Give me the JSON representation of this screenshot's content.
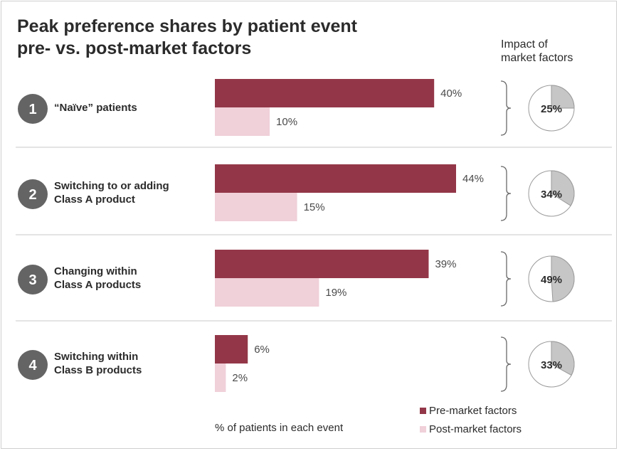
{
  "title": "Peak preference shares by patient event\npre- vs. post-market factors",
  "impact_header": "Impact of\nmarket factors",
  "colors": {
    "pre": "#933748",
    "post": "#f0d0d9",
    "badge": "#646464",
    "pie_fill": "#c6c6c6",
    "divider": "#c9c9c9"
  },
  "chart_data": {
    "type": "bar",
    "orientation": "horizontal",
    "categories": [
      "“Naïve” patients",
      "Switching to or adding Class A product",
      "Changing within Class A products",
      "Switching within Class B products"
    ],
    "category_numbers": [
      "1",
      "2",
      "3",
      "4"
    ],
    "category_lines": [
      [
        "“Naïve” patients"
      ],
      [
        "Switching to or adding",
        "Class A product"
      ],
      [
        "Changing within",
        "Class A products"
      ],
      [
        "Switching within",
        "Class B products"
      ]
    ],
    "series": [
      {
        "name": "Pre-market factors",
        "values": [
          40,
          44,
          39,
          6
        ],
        "labels": [
          "40%",
          "44%",
          "39%",
          "6%"
        ]
      },
      {
        "name": "Post-market factors",
        "values": [
          10,
          15,
          19,
          2
        ],
        "labels": [
          "10%",
          "15%",
          "19%",
          "2%"
        ]
      }
    ],
    "impact": {
      "values": [
        25,
        34,
        49,
        33
      ],
      "labels": [
        "25%",
        "34%",
        "49%",
        "33%"
      ]
    },
    "xlabel": "% of patients in each event",
    "xlim": [
      0,
      44
    ],
    "legend": "bottom-right"
  }
}
